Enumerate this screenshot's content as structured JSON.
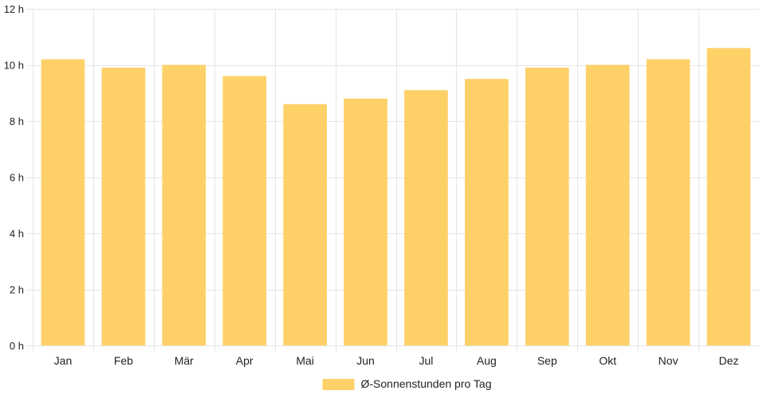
{
  "chart_data": {
    "type": "bar",
    "categories": [
      "Jan",
      "Feb",
      "Mär",
      "Apr",
      "Mai",
      "Jun",
      "Jul",
      "Aug",
      "Sep",
      "Okt",
      "Nov",
      "Dez"
    ],
    "series": [
      {
        "name": "Ø-Sonnenstunden pro Tag",
        "values": [
          10.2,
          9.9,
          10.0,
          9.6,
          8.6,
          8.8,
          9.1,
          9.5,
          9.9,
          10.0,
          10.2,
          10.6
        ],
        "color": "#fed168"
      }
    ],
    "y_ticks": [
      "0 h",
      "2 h",
      "4 h",
      "6 h",
      "8 h",
      "10 h",
      "12 h"
    ],
    "ylim": [
      0,
      12
    ],
    "y_tick_step": 2,
    "grid": true,
    "grid_color": "#e5e5e5",
    "legend_position": "bottom"
  }
}
